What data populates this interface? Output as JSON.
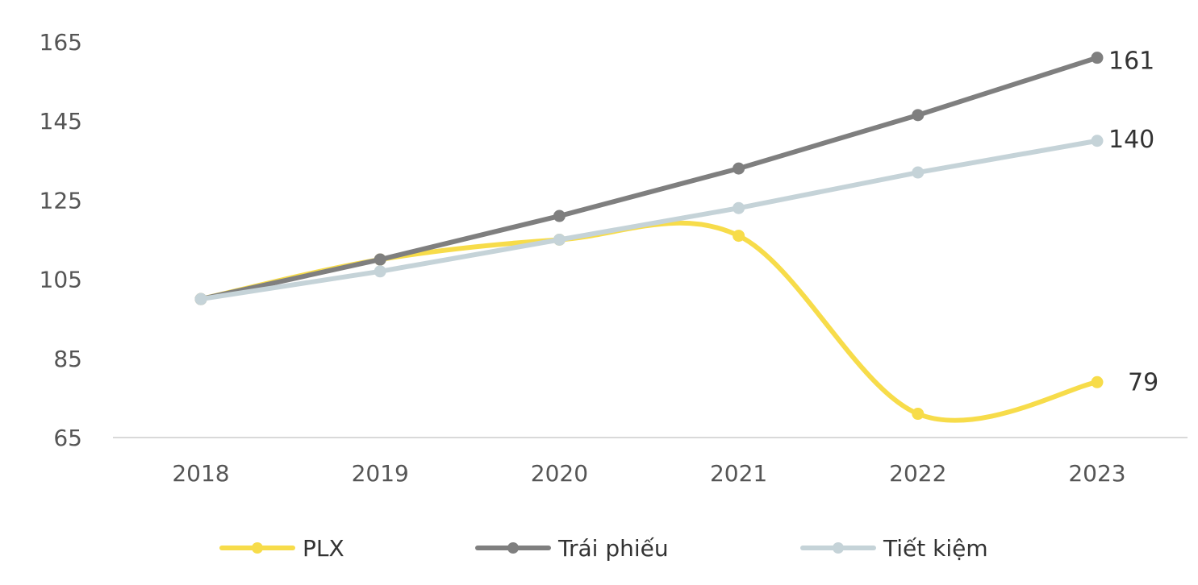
{
  "chart_data": {
    "type": "line",
    "categories": [
      "2018",
      "2019",
      "2020",
      "2021",
      "2022",
      "2023"
    ],
    "ylim": [
      65,
      165
    ],
    "yticks": [
      65,
      85,
      105,
      125,
      145,
      165
    ],
    "grid": false,
    "legend": "bottom",
    "series": [
      {
        "name": "PLX",
        "color": "#f7dc4a",
        "smooth": true,
        "values": [
          100,
          110,
          115,
          116,
          71,
          79
        ],
        "end_label": "79"
      },
      {
        "name": "Trái phiếu",
        "color": "#7f7f7f",
        "smooth": false,
        "values": [
          100,
          110,
          121,
          133,
          146.5,
          161
        ],
        "end_label": "161"
      },
      {
        "name": "Tiết kiệm",
        "color": "#c5d3d8",
        "smooth": false,
        "values": [
          100,
          107,
          115,
          123,
          132,
          140
        ],
        "end_label": "140"
      }
    ]
  }
}
